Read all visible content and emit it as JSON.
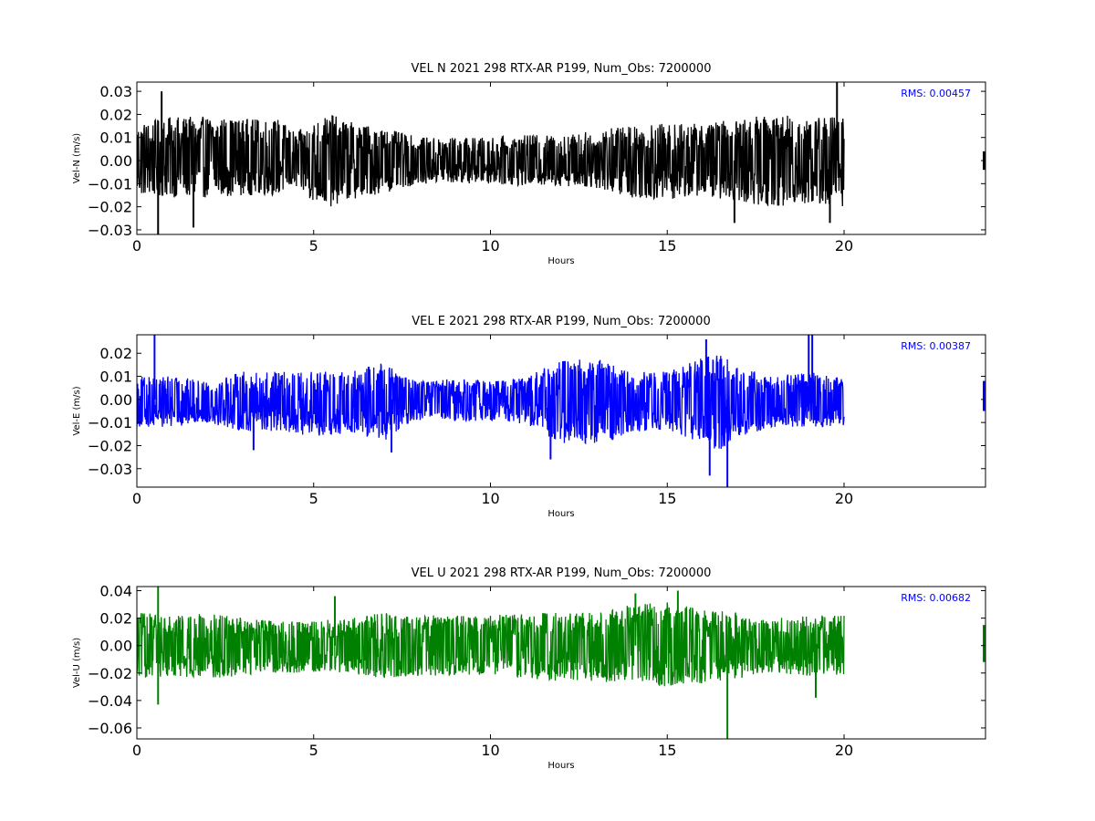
{
  "chart_data": [
    {
      "type": "line",
      "title": "VEL N 2021 298 RTX-AR  P199, Num_Obs: 7200000",
      "xlabel": "Hours",
      "ylabel": "Vel-N (m/s)",
      "color": "#000000",
      "annotation": "RMS:  0.00457",
      "xlim": [
        0,
        24
      ],
      "ylim": [
        -0.032,
        0.034
      ],
      "xticks": [
        0,
        5,
        10,
        15,
        20
      ],
      "xtick_labels": [
        "0",
        "5",
        "10",
        "15",
        "20"
      ],
      "yticks": [
        -0.03,
        -0.02,
        -0.01,
        0.0,
        0.01,
        0.02,
        0.03
      ],
      "ytick_labels": [
        "−0.03",
        "−0.02",
        "−0.01",
        "0.00",
        "0.01",
        "0.02",
        "0.03"
      ],
      "series": [
        {
          "x": [
            0,
            1,
            2,
            3,
            4,
            4.5,
            5,
            5.5,
            6,
            7,
            8,
            9,
            10,
            11,
            12,
            13,
            14,
            15,
            16,
            17,
            18,
            19,
            20
          ],
          "upper": [
            0.016,
            0.019,
            0.019,
            0.018,
            0.018,
            0.012,
            0.017,
            0.02,
            0.017,
            0.014,
            0.01,
            0.01,
            0.01,
            0.011,
            0.011,
            0.013,
            0.016,
            0.016,
            0.016,
            0.018,
            0.02,
            0.019,
            0.02
          ],
          "lower": [
            -0.015,
            -0.016,
            -0.016,
            -0.015,
            -0.015,
            -0.012,
            -0.018,
            -0.02,
            -0.017,
            -0.014,
            -0.01,
            -0.01,
            -0.01,
            -0.011,
            -0.011,
            -0.012,
            -0.016,
            -0.017,
            -0.015,
            -0.018,
            -0.02,
            -0.019,
            -0.02
          ],
          "spikes": [
            [
              0.7,
              0.03
            ],
            [
              0.6,
              -0.032
            ],
            [
              1.6,
              -0.029
            ],
            [
              16.9,
              -0.027
            ],
            [
              19.8,
              0.034
            ],
            [
              19.6,
              -0.027
            ]
          ],
          "tail": [
            24,
            -0.004,
            0.004
          ]
        }
      ]
    },
    {
      "type": "line",
      "title": "VEL E 2021 298 RTX-AR  P199, Num_Obs: 7200000",
      "xlabel": "Hours",
      "ylabel": "Vel-E (m/s)",
      "color": "#0000ff",
      "annotation": "RMS:  0.00387",
      "xlim": [
        0,
        24
      ],
      "ylim": [
        -0.038,
        0.028
      ],
      "xticks": [
        0,
        5,
        10,
        15,
        20
      ],
      "xtick_labels": [
        "0",
        "5",
        "10",
        "15",
        "20"
      ],
      "yticks": [
        -0.03,
        -0.02,
        -0.01,
        0.0,
        0.01,
        0.02
      ],
      "ytick_labels": [
        "−0.03",
        "−0.02",
        "−0.01",
        "0.00",
        "0.01",
        "0.02"
      ],
      "series": [
        {
          "x": [
            0,
            1,
            2,
            3,
            4,
            5,
            6,
            7,
            7.5,
            8,
            9,
            10,
            11,
            12,
            13,
            14,
            15,
            16,
            16.5,
            17,
            18,
            19,
            20
          ],
          "upper": [
            0.01,
            0.01,
            0.008,
            0.012,
            0.012,
            0.012,
            0.012,
            0.016,
            0.01,
            0.008,
            0.009,
            0.008,
            0.01,
            0.017,
            0.018,
            0.012,
            0.012,
            0.018,
            0.02,
            0.014,
            0.01,
            0.012,
            0.01
          ],
          "lower": [
            -0.012,
            -0.012,
            -0.01,
            -0.014,
            -0.014,
            -0.016,
            -0.015,
            -0.018,
            -0.012,
            -0.009,
            -0.01,
            -0.009,
            -0.011,
            -0.019,
            -0.02,
            -0.014,
            -0.013,
            -0.02,
            -0.022,
            -0.016,
            -0.012,
            -0.012,
            -0.012
          ],
          "spikes": [
            [
              0.5,
              0.028
            ],
            [
              3.3,
              -0.022
            ],
            [
              7.2,
              -0.023
            ],
            [
              11.7,
              -0.026
            ],
            [
              16.1,
              0.026
            ],
            [
              16.2,
              -0.033
            ],
            [
              16.7,
              -0.038
            ],
            [
              19.0,
              0.028
            ],
            [
              19.1,
              0.028
            ]
          ],
          "tail": [
            24,
            -0.005,
            0.008
          ]
        }
      ]
    },
    {
      "type": "line",
      "title": "VEL U 2021 298 RTX-AR  P199, Num_Obs: 7200000",
      "xlabel": "Hours",
      "ylabel": "Vel-U (m/s)",
      "color": "#008000",
      "annotation": "RMS:  0.00682",
      "xlim": [
        0,
        24
      ],
      "ylim": [
        -0.068,
        0.043
      ],
      "xticks": [
        0,
        5,
        10,
        15,
        20
      ],
      "xtick_labels": [
        "0",
        "5",
        "10",
        "15",
        "20"
      ],
      "yticks": [
        -0.06,
        -0.04,
        -0.02,
        0.0,
        0.02,
        0.04
      ],
      "ytick_labels": [
        "−0.06",
        "−0.04",
        "−0.02",
        "0.00",
        "0.02",
        "0.04"
      ],
      "series": [
        {
          "x": [
            0,
            1,
            2,
            3,
            4,
            5,
            6,
            7,
            8,
            9,
            10,
            11,
            12,
            13,
            14,
            15,
            16,
            17,
            18,
            19,
            20
          ],
          "upper": [
            0.024,
            0.022,
            0.024,
            0.02,
            0.018,
            0.018,
            0.02,
            0.024,
            0.022,
            0.022,
            0.022,
            0.024,
            0.024,
            0.024,
            0.03,
            0.032,
            0.028,
            0.024,
            0.02,
            0.022,
            0.022
          ],
          "lower": [
            -0.024,
            -0.022,
            -0.024,
            -0.022,
            -0.02,
            -0.02,
            -0.02,
            -0.024,
            -0.022,
            -0.022,
            -0.022,
            -0.024,
            -0.026,
            -0.026,
            -0.028,
            -0.03,
            -0.028,
            -0.024,
            -0.02,
            -0.022,
            -0.022
          ],
          "spikes": [
            [
              0.6,
              0.043
            ],
            [
              0.6,
              -0.043
            ],
            [
              5.6,
              0.036
            ],
            [
              16.7,
              -0.068
            ],
            [
              14.1,
              0.038
            ],
            [
              15.3,
              0.04
            ],
            [
              19.2,
              -0.038
            ]
          ],
          "tail": [
            24,
            -0.012,
            0.015
          ]
        }
      ]
    }
  ]
}
